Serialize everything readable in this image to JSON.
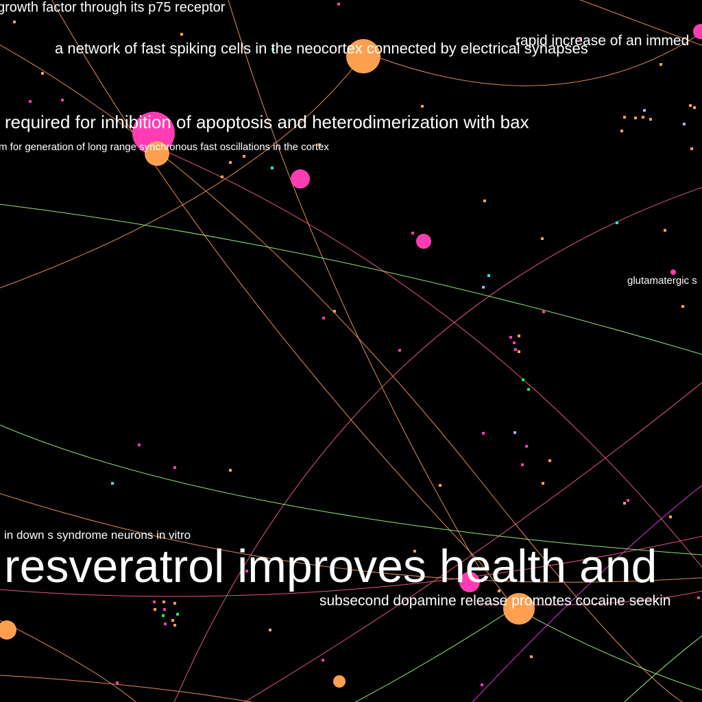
{
  "colors": {
    "background": "#000000",
    "label": "#ffffff",
    "orange": "#ffa050",
    "pink": "#ff3cb4",
    "cyan": "#22e6f0",
    "lavender": "#aaaaff",
    "green": "#22ee44",
    "edge_orange": "#ff9f5f",
    "edge_pink": "#ff5f8f",
    "edge_green": "#aaff7f",
    "edge_magenta": "#ff3cff"
  },
  "labels": [
    "growth factor through its p75 receptor",
    "a network of fast spiking cells in the neocortex connected by electrical synapses",
    "rapid increase of an immed",
    "required for inhibition of apoptosis and heterodimerization with bax",
    "m for generation of long range synchronous fast oscillations in the cortex",
    "glutamatergic s",
    "in down s syndrome neurons in vitro",
    "resveratrol improves health and",
    "subsecond dopamine release promotes cocaine seekin"
  ],
  "node_groups": [
    "orange",
    "pink",
    "cyan",
    "lavender",
    "green"
  ]
}
